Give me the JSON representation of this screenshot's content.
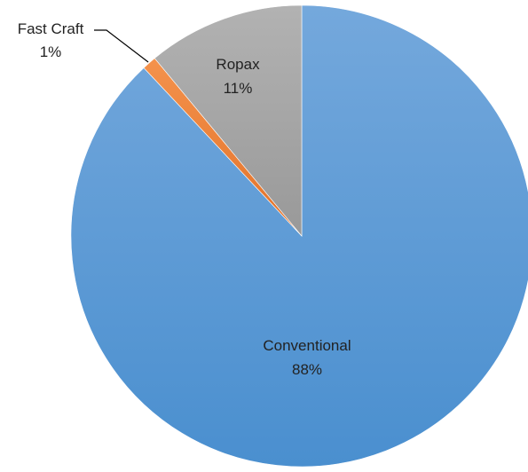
{
  "chart_data": {
    "type": "pie",
    "title": "",
    "start_angle_deg": 0,
    "direction": "clockwise",
    "legend": "none",
    "slices": [
      {
        "category": "Conventional",
        "value": 88,
        "label": "88%",
        "color": "#5b9bd5"
      },
      {
        "category": "Fast Craft",
        "value": 1,
        "label": "1%",
        "color": "#ed7d31"
      },
      {
        "category": "Ropax",
        "value": 11,
        "label": "11%",
        "color": "#a5a5a5"
      }
    ]
  }
}
